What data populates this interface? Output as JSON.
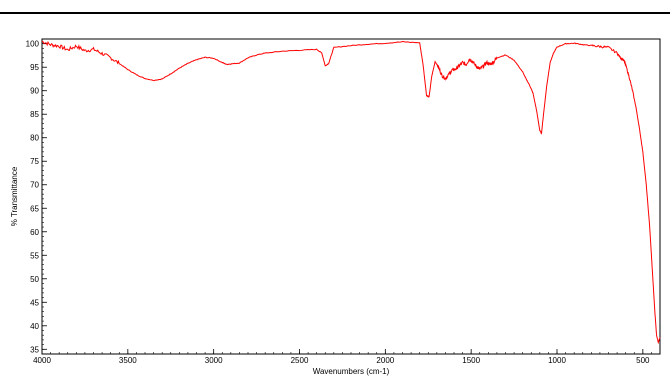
{
  "chart_data": {
    "type": "line",
    "title": "",
    "xlabel": "Wavenumbers (cm-1)",
    "ylabel": "% Transmittance",
    "xlim": [
      4000,
      400
    ],
    "ylim": [
      34,
      101
    ],
    "x_ticks": [
      4000,
      3500,
      3000,
      2500,
      2000,
      1500,
      1000,
      500
    ],
    "y_ticks": [
      35,
      40,
      45,
      50,
      55,
      60,
      65,
      70,
      75,
      80,
      85,
      90,
      95,
      100
    ],
    "grid": false,
    "legend": "none",
    "series_color": "#ff0000",
    "series": [
      {
        "x": [
          4000,
          3950,
          3900,
          3850,
          3800,
          3750,
          3700,
          3650,
          3600,
          3550,
          3500,
          3450,
          3400,
          3350,
          3300,
          3250,
          3200,
          3150,
          3100,
          3050,
          3000,
          2950,
          2925,
          2900,
          2850,
          2800,
          2750,
          2700,
          2600,
          2500,
          2400,
          2370,
          2350,
          2330,
          2300,
          2200,
          2100,
          2000,
          1900,
          1800,
          1780,
          1760,
          1745,
          1730,
          1710,
          1690,
          1670,
          1650,
          1630,
          1610,
          1590,
          1570,
          1550,
          1530,
          1510,
          1490,
          1470,
          1450,
          1430,
          1410,
          1390,
          1370,
          1350,
          1300,
          1250,
          1200,
          1180,
          1160,
          1140,
          1120,
          1100,
          1090,
          1080,
          1060,
          1040,
          1020,
          1000,
          950,
          900,
          850,
          800,
          750,
          700,
          650,
          630,
          610,
          600,
          580,
          560,
          540,
          520,
          500,
          480,
          460,
          450,
          440,
          430,
          420,
          410,
          400
        ],
        "y": [
          100.5,
          99.8,
          99.5,
          98.7,
          99.5,
          98.5,
          98.8,
          97.9,
          97.0,
          95.8,
          94.5,
          93.4,
          92.6,
          92.2,
          92.5,
          93.6,
          94.8,
          95.8,
          96.6,
          97.1,
          96.9,
          96.0,
          95.6,
          95.7,
          95.9,
          97.0,
          97.6,
          98.0,
          98.4,
          98.6,
          98.8,
          98.0,
          95.3,
          95.8,
          99.2,
          99.6,
          99.9,
          100.1,
          100.4,
          100.2,
          95.5,
          89.0,
          88.7,
          93.0,
          96.2,
          95.0,
          93.2,
          92.6,
          93.5,
          94.4,
          94.6,
          95.3,
          96.0,
          95.5,
          96.8,
          96.1,
          95.2,
          94.6,
          95.2,
          96.0,
          95.6,
          96.1,
          97.0,
          97.6,
          96.5,
          94.0,
          92.5,
          91.2,
          89.5,
          86.0,
          81.5,
          81.0,
          84.5,
          91.0,
          96.0,
          98.0,
          99.3,
          100.0,
          100.1,
          99.8,
          99.6,
          99.4,
          99.2,
          98.0,
          97.0,
          96.5,
          95.5,
          93.0,
          90.0,
          86.5,
          82.0,
          77.0,
          70.0,
          61.0,
          55.0,
          49.0,
          43.0,
          38.0,
          36.5,
          37.5
        ]
      }
    ]
  }
}
